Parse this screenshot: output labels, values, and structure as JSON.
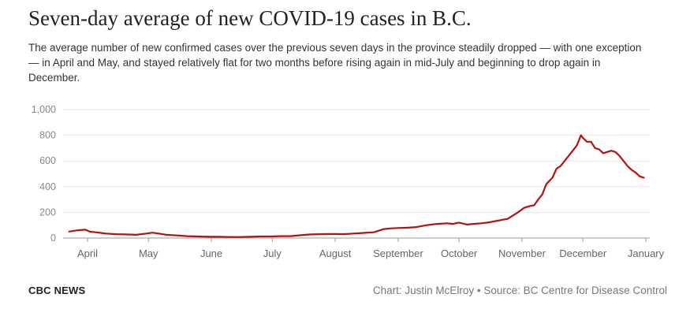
{
  "header": {
    "title": "Seven-day average of new COVID-19 cases in B.C.",
    "subtitle": "The average number of new confirmed cases over the previous seven days in the province steadily dropped — with one exception — in April and May, and stayed relatively flat for two months before rising again in mid-July and beginning to drop again in December."
  },
  "footer": {
    "brand": "CBC NEWS",
    "credit": "Chart: Justin McElroy • Source: BC Centre for Disease Control"
  },
  "chart_data": {
    "type": "line",
    "title": "",
    "xlabel": "",
    "ylabel": "",
    "ylim": [
      0,
      1000
    ],
    "y_ticks": [
      0,
      200,
      400,
      600,
      800,
      1000
    ],
    "y_tick_labels": [
      "0",
      "200",
      "400",
      "600",
      "800",
      "1,000"
    ],
    "x_ticks": [
      {
        "date": "2020-04-01",
        "label": "April"
      },
      {
        "date": "2020-05-01",
        "label": "May"
      },
      {
        "date": "2020-06-01",
        "label": "June"
      },
      {
        "date": "2020-07-01",
        "label": "July"
      },
      {
        "date": "2020-08-01",
        "label": "August"
      },
      {
        "date": "2020-09-01",
        "label": "September"
      },
      {
        "date": "2020-10-01",
        "label": "October"
      },
      {
        "date": "2020-11-01",
        "label": "November"
      },
      {
        "date": "2020-12-01",
        "label": "December"
      },
      {
        "date": "2021-01-01",
        "label": "January"
      }
    ],
    "xlim": [
      "2020-03-23",
      "2020-12-31"
    ],
    "grid": true,
    "color": "#b5120f",
    "series": [
      {
        "x": [
          "2020-03-23",
          "2020-03-27",
          "2020-03-31",
          "2020-04-02",
          "2020-04-05",
          "2020-04-10",
          "2020-04-15",
          "2020-04-20",
          "2020-04-25",
          "2020-04-30",
          "2020-05-03",
          "2020-05-06",
          "2020-05-10",
          "2020-05-15",
          "2020-05-20",
          "2020-05-25",
          "2020-06-01",
          "2020-06-05",
          "2020-06-10",
          "2020-06-15",
          "2020-06-20",
          "2020-06-25",
          "2020-06-30",
          "2020-07-05",
          "2020-07-10",
          "2020-07-15",
          "2020-07-20",
          "2020-07-25",
          "2020-07-30",
          "2020-08-05",
          "2020-08-10",
          "2020-08-15",
          "2020-08-20",
          "2020-08-25",
          "2020-08-28",
          "2020-09-01",
          "2020-09-05",
          "2020-09-10",
          "2020-09-15",
          "2020-09-20",
          "2020-09-25",
          "2020-09-28",
          "2020-10-01",
          "2020-10-05",
          "2020-10-08",
          "2020-10-12",
          "2020-10-15",
          "2020-10-20",
          "2020-10-25",
          "2020-10-30",
          "2020-11-02",
          "2020-11-05",
          "2020-11-07",
          "2020-11-09",
          "2020-11-11",
          "2020-11-13",
          "2020-11-16",
          "2020-11-18",
          "2020-11-20",
          "2020-11-22",
          "2020-11-24",
          "2020-11-26",
          "2020-11-28",
          "2020-11-30",
          "2020-12-01",
          "2020-12-03",
          "2020-12-05",
          "2020-12-07",
          "2020-12-09",
          "2020-12-11",
          "2020-12-13",
          "2020-12-15",
          "2020-12-17",
          "2020-12-19",
          "2020-12-21",
          "2020-12-23",
          "2020-12-25",
          "2020-12-27",
          "2020-12-29",
          "2020-12-31"
        ],
        "values": [
          50,
          60,
          65,
          50,
          45,
          35,
          30,
          28,
          25,
          35,
          42,
          35,
          25,
          20,
          15,
          12,
          10,
          10,
          8,
          8,
          10,
          12,
          12,
          15,
          15,
          22,
          28,
          30,
          32,
          30,
          35,
          40,
          45,
          70,
          75,
          78,
          80,
          85,
          100,
          110,
          115,
          110,
          120,
          105,
          110,
          115,
          120,
          135,
          150,
          200,
          235,
          250,
          255,
          300,
          340,
          420,
          470,
          540,
          560,
          600,
          640,
          680,
          720,
          800,
          780,
          750,
          750,
          700,
          690,
          660,
          670,
          680,
          670,
          640,
          600,
          560,
          530,
          510,
          480,
          470
        ]
      }
    ]
  }
}
